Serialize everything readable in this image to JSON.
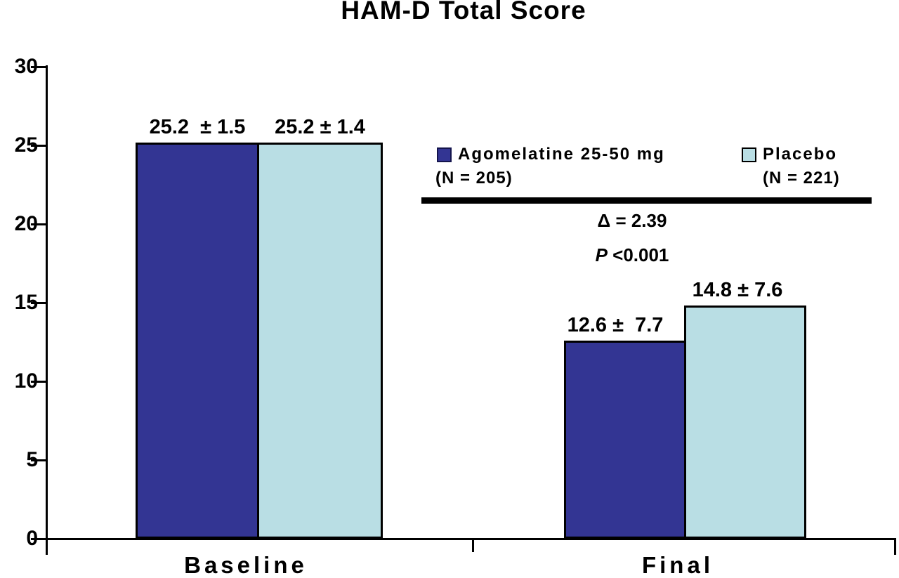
{
  "chart_data": {
    "type": "bar",
    "title": "HAM-D Total Score",
    "categories": [
      "Baseline",
      "Final"
    ],
    "series": [
      {
        "name": "Agomelatine 25-50 mg",
        "n_label": "(N = 205)",
        "color": "#333593",
        "values": [
          25.2,
          12.6
        ],
        "sd": [
          1.5,
          7.7
        ],
        "bar_labels": [
          "25.2  ± 1.5",
          "12.6 ±  7.7"
        ]
      },
      {
        "name": "Placebo",
        "n_label": "(N = 221)",
        "color": "#b9dee4",
        "values": [
          25.2,
          14.8
        ],
        "sd": [
          1.4,
          7.6
        ],
        "bar_labels": [
          "25.2 ± 1.4",
          "14.8 ± 7.6"
        ]
      }
    ],
    "ylim": [
      0,
      30
    ],
    "yticks": [
      0,
      5,
      10,
      15,
      20,
      25,
      30
    ],
    "grid": false,
    "legend_position": "upper-right-inside",
    "annotations": {
      "delta": "Δ = 2.39",
      "p_italic": "P",
      "p_rest": " <0.001"
    }
  }
}
